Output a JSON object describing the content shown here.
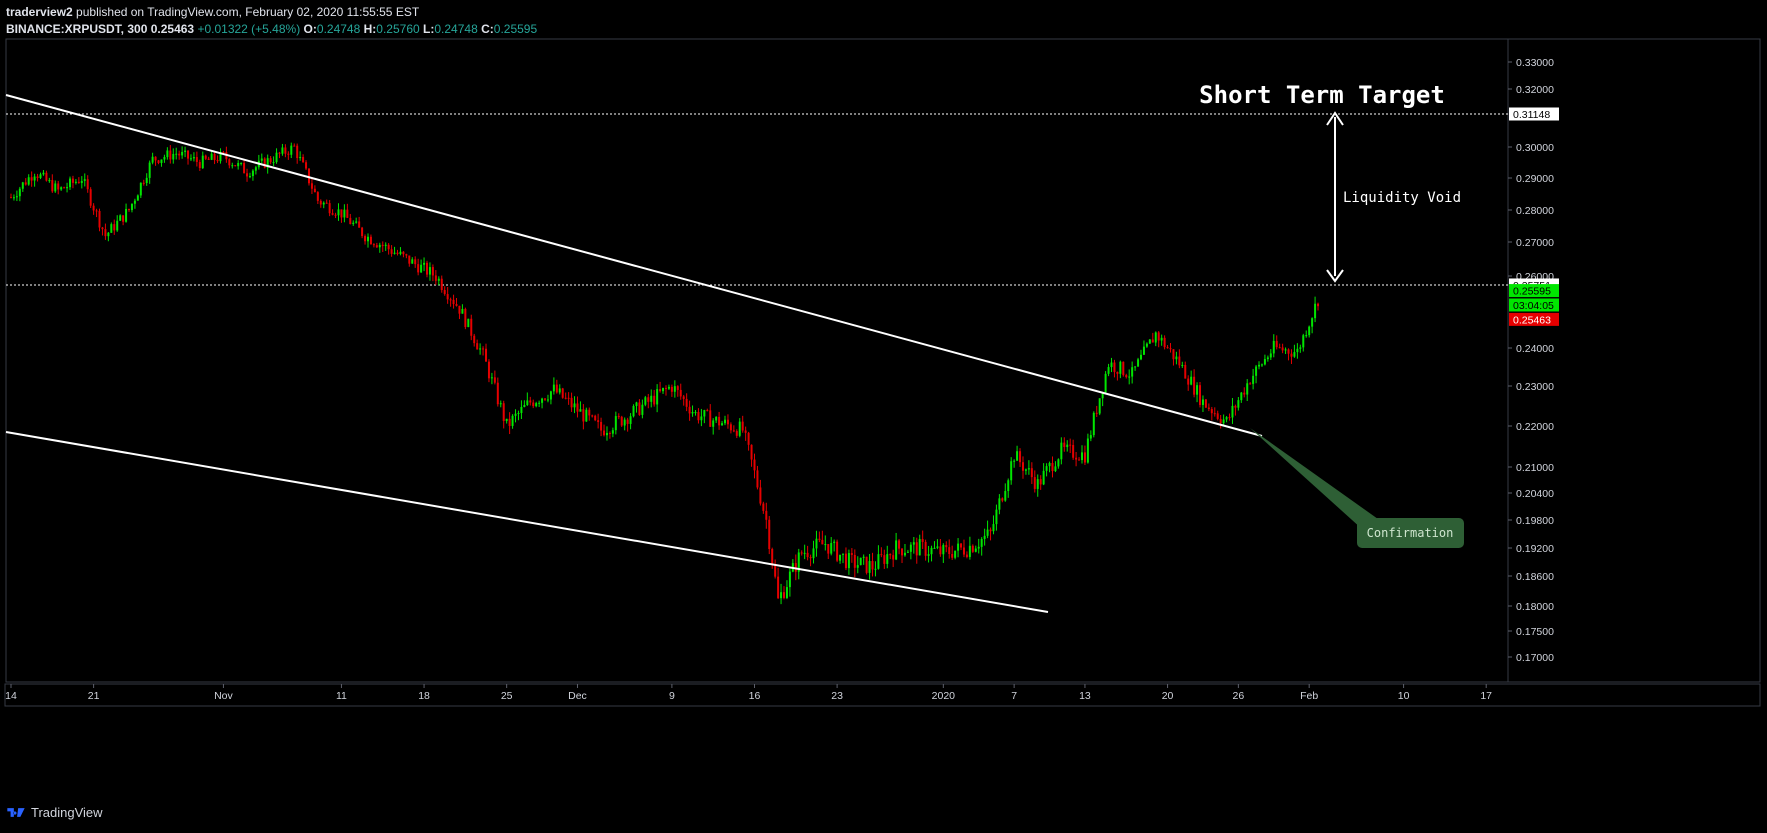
{
  "header": {
    "author": "traderview2",
    "published": "published on TradingView.com, February 02, 2020 11:55:55 EST",
    "symbol": "BINANCE:XRPUSDT, 300",
    "last": "0.25463",
    "change": "+0.01322 (+5.48%)",
    "o_label": "O:",
    "o": "0.24748",
    "h_label": "H:",
    "h": "0.25760",
    "l_label": "L:",
    "l": "0.24748",
    "c_label": "C:",
    "c": "0.25595"
  },
  "footer": {
    "brand": "TradingView",
    "logo_icon": "tradingview-logo-icon"
  },
  "colors": {
    "up": "#00e600",
    "down": "#e60000",
    "line": "#ffffff",
    "confirm_bg": "#2e5f35",
    "confirm_text": "#cfe6cf"
  },
  "chart_data": {
    "type": "candlestick",
    "symbol": "XRPUSDT",
    "ylim": [
      0.166,
      0.335
    ],
    "y_ticks": [
      "0.33000",
      "0.32000",
      "0.31148",
      "0.30000",
      "0.29000",
      "0.28000",
      "0.27000",
      "0.26000",
      "0.25751",
      "0.25595",
      "0.25463",
      "0.24000",
      "0.23000",
      "0.22000",
      "0.21000",
      "0.20400",
      "0.19800",
      "0.19200",
      "0.18600",
      "0.18000",
      "0.17500",
      "0.17000"
    ],
    "x_ticks": [
      "14",
      "21",
      "Nov",
      "11",
      "18",
      "25",
      "Dec",
      "9",
      "16",
      "23",
      "2020",
      "7",
      "13",
      "20",
      "26",
      "Feb",
      "10",
      "17"
    ],
    "price_series": [
      {
        "date": "Oct 14",
        "close": 0.284
      },
      {
        "date": "Oct 16",
        "close": 0.292
      },
      {
        "date": "Oct 18",
        "close": 0.286
      },
      {
        "date": "Oct 20",
        "close": 0.29
      },
      {
        "date": "Oct 22",
        "close": 0.272
      },
      {
        "date": "Oct 24",
        "close": 0.28
      },
      {
        "date": "Oct 26",
        "close": 0.296
      },
      {
        "date": "Oct 28",
        "close": 0.298
      },
      {
        "date": "Oct 30",
        "close": 0.295
      },
      {
        "date": "Nov 1",
        "close": 0.297
      },
      {
        "date": "Nov 3",
        "close": 0.292
      },
      {
        "date": "Nov 5",
        "close": 0.296
      },
      {
        "date": "Nov 7",
        "close": 0.3
      },
      {
        "date": "Nov 9",
        "close": 0.283
      },
      {
        "date": "Nov 11",
        "close": 0.279
      },
      {
        "date": "Nov 13",
        "close": 0.272
      },
      {
        "date": "Nov 15",
        "close": 0.268
      },
      {
        "date": "Nov 17",
        "close": 0.264
      },
      {
        "date": "Nov 19",
        "close": 0.26
      },
      {
        "date": "Nov 21",
        "close": 0.251
      },
      {
        "date": "Nov 23",
        "close": 0.238
      },
      {
        "date": "Nov 25",
        "close": 0.22
      },
      {
        "date": "Nov 27",
        "close": 0.226
      },
      {
        "date": "Nov 29",
        "close": 0.229
      },
      {
        "date": "Dec 1",
        "close": 0.224
      },
      {
        "date": "Dec 3",
        "close": 0.219
      },
      {
        "date": "Dec 5",
        "close": 0.222
      },
      {
        "date": "Dec 7",
        "close": 0.226
      },
      {
        "date": "Dec 9",
        "close": 0.23
      },
      {
        "date": "Dec 11",
        "close": 0.223
      },
      {
        "date": "Dec 13",
        "close": 0.221
      },
      {
        "date": "Dec 15",
        "close": 0.219
      },
      {
        "date": "Dec 17",
        "close": 0.198
      },
      {
        "date": "Dec 18",
        "close": 0.181
      },
      {
        "date": "Dec 20",
        "close": 0.191
      },
      {
        "date": "Dec 22",
        "close": 0.193
      },
      {
        "date": "Dec 24",
        "close": 0.189
      },
      {
        "date": "Dec 26",
        "close": 0.188
      },
      {
        "date": "Dec 28",
        "close": 0.192
      },
      {
        "date": "Dec 30",
        "close": 0.192
      },
      {
        "date": "Jan 1",
        "close": 0.191
      },
      {
        "date": "Jan 3",
        "close": 0.192
      },
      {
        "date": "Jan 5",
        "close": 0.195
      },
      {
        "date": "Jan 7",
        "close": 0.213
      },
      {
        "date": "Jan 9",
        "close": 0.206
      },
      {
        "date": "Jan 11",
        "close": 0.214
      },
      {
        "date": "Jan 13",
        "close": 0.213
      },
      {
        "date": "Jan 15",
        "close": 0.236
      },
      {
        "date": "Jan 17",
        "close": 0.233
      },
      {
        "date": "Jan 19",
        "close": 0.244
      },
      {
        "date": "Jan 21",
        "close": 0.236
      },
      {
        "date": "Jan 23",
        "close": 0.226
      },
      {
        "date": "Jan 25",
        "close": 0.221
      },
      {
        "date": "Jan 27",
        "close": 0.232
      },
      {
        "date": "Jan 29",
        "close": 0.24
      },
      {
        "date": "Jan 31",
        "close": 0.239
      },
      {
        "date": "Feb 2",
        "close": 0.2556
      }
    ],
    "horizontal_levels": [
      {
        "value": 0.31148,
        "style": "dotted"
      },
      {
        "value": 0.25751,
        "style": "dotted"
      }
    ],
    "price_labels": [
      {
        "value": "0.31148",
        "price": 0.31148,
        "bg": "#ffffff",
        "fg": "#000000"
      },
      {
        "value": "0.25751",
        "price": 0.25751,
        "bg": "#ffffff",
        "fg": "#000000"
      },
      {
        "value": "0.25595",
        "price": 0.25595,
        "bg": "#00e600",
        "fg": "#000000"
      },
      {
        "value": "03:04:05",
        "price": 0.25195,
        "bg": "#00e600",
        "fg": "#000000"
      },
      {
        "value": "0.25463",
        "price": 0.24795,
        "bg": "#e60000",
        "fg": "#ffffff"
      }
    ],
    "annotations": {
      "target_label": "Short Term Target",
      "void_label": "Liquidity Void",
      "confirm_label": "Confirmation"
    }
  }
}
